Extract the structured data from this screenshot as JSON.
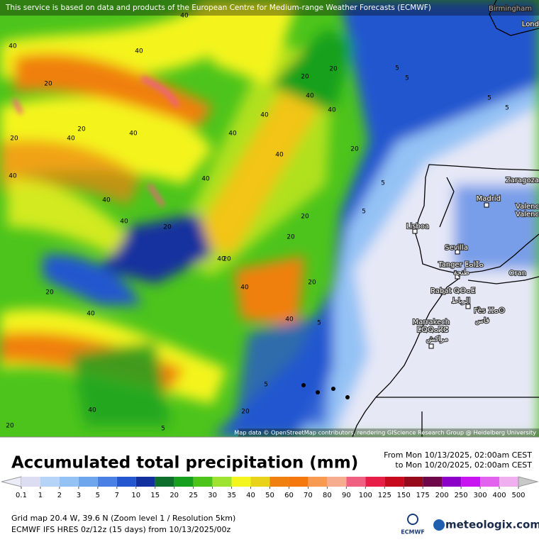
{
  "header": {
    "notice": "This service is based on data and products of the European Centre for Medium-range Weather Forecasts (ECMWF)"
  },
  "map": {
    "places": [
      "Birmingham",
      "Lond",
      "Zaragoza",
      "Madrid",
      "Valenc",
      "Valenc",
      "Lisboa",
      "Sevilla",
      "Tanger ⵟⴰⵏⵊⴰ",
      "طنجة",
      "Oran",
      "Rabat ⵕⴱⴰⵟ",
      "الرباط",
      "Fès ⴼⴰⵙ",
      "فاس",
      "Marrakech",
      "ⵎⵕⵕⴰⴽⵛ",
      "مراكش"
    ],
    "contour_labels": [
      40,
      40,
      40,
      20,
      40,
      20,
      40,
      20,
      40,
      40,
      40,
      20,
      20,
      40,
      40,
      40,
      40,
      20,
      20,
      40,
      40,
      20,
      40,
      20,
      20,
      40,
      40,
      20,
      5,
      5,
      5,
      5,
      5,
      5,
      20,
      5,
      40,
      20,
      20,
      40,
      5,
      5
    ],
    "attribution": "Map data © OpenStreetMap contributors, rendering GIScience Research Group @ Heidelberg University"
  },
  "panel": {
    "title": "Accumulated total precipitation (mm)",
    "period_from": "From Mon 10/13/2025, 02:00am CEST",
    "period_to": "to Mon 10/20/2025, 02:00am CEST",
    "legend": {
      "ticks": [
        0.1,
        1,
        2,
        3,
        5,
        7,
        10,
        15,
        20,
        25,
        30,
        35,
        40,
        50,
        60,
        70,
        80,
        90,
        100,
        125,
        150,
        175,
        200,
        250,
        300,
        400,
        500
      ],
      "low_color": "#ececf8",
      "colors": [
        "#dcdcf2",
        "#b6d4f7",
        "#94c2f5",
        "#6ea6ee",
        "#4a7fe4",
        "#2456cf",
        "#12309e",
        "#0e6e2c",
        "#16a01e",
        "#4cc41c",
        "#9ee232",
        "#f4f41e",
        "#e8d21a",
        "#f08010",
        "#f5780f",
        "#f89a52",
        "#f6ac8e",
        "#f06080",
        "#e61e48",
        "#c80a1e",
        "#960a1c",
        "#6e0848",
        "#8c00c8",
        "#c814f0",
        "#e264ee",
        "#f0b0f0",
        "#f6e8f6"
      ],
      "high_color": "#c8c8c8"
    },
    "grid_info": "Grid map 20.4 W, 39.6 N (Zoom level 1 / Resolution 5km)",
    "model": "ECMWF IFS HRES 0z/12z (15 days) from  10/13/2025/00z",
    "ecmwf_logo": "ECMWF",
    "brand": "meteologix.com"
  }
}
